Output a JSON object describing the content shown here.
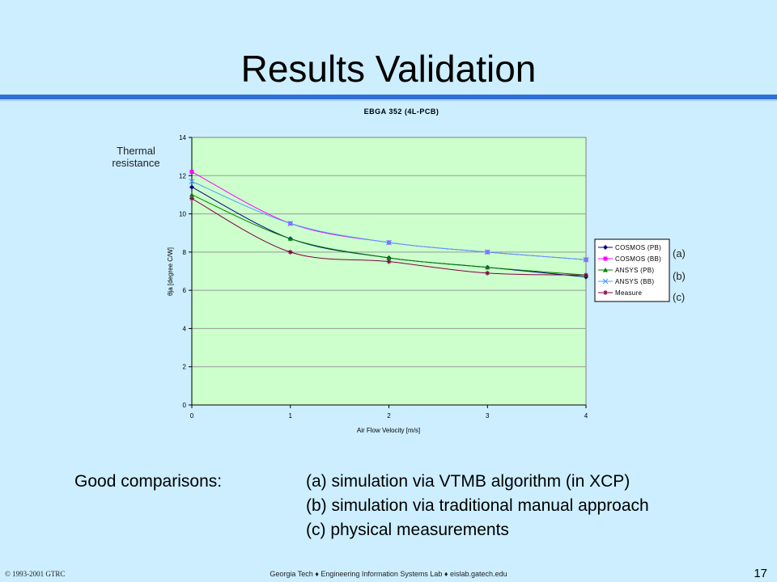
{
  "slide": {
    "title": "Results Validation",
    "side_label_line1": "Thermal",
    "side_label_line2": "resistance",
    "tags": [
      "(a)",
      "(b)",
      "(c)"
    ],
    "comparisons_heading": "Good comparisons:",
    "comparisons": [
      "(a) simulation via VTMB algorithm  (in XCP)",
      "(b) simulation via traditional manual approach",
      "(c) physical measurements"
    ],
    "footer_left": "© 1993-2001 GTRC",
    "footer_center": "Georgia Tech  ♦ Engineering  Information Systems Lab ♦ eislab.gatech.edu",
    "page_number": "17"
  },
  "colors": {
    "background": "#cceeff",
    "rule": "#2f6fd8",
    "plot_area": "#ccffcc"
  },
  "chart_data": {
    "type": "line",
    "title": "EBGA 352 (4L-PCB)",
    "xlabel": "Air Flow Velocity [m/s]",
    "ylabel": "θja  [degree C/W]",
    "x": [
      0,
      1,
      2,
      3,
      4
    ],
    "xlim": [
      0,
      4
    ],
    "ylim": [
      0,
      14
    ],
    "x_ticks": [
      "0",
      "1",
      "2",
      "3",
      "4"
    ],
    "y_ticks": [
      "0",
      "2",
      "4",
      "6",
      "8",
      "10",
      "12",
      "14"
    ],
    "grid": "horizontal",
    "legend_position": "right",
    "series": [
      {
        "name": "COSMOS (PB)",
        "values": [
          11.4,
          8.7,
          7.7,
          7.2,
          6.7
        ],
        "color": "#000080",
        "marker": "diamond"
      },
      {
        "name": "COSMOS (BB)",
        "values": [
          12.2,
          9.5,
          8.5,
          8.0,
          7.6
        ],
        "color": "#ff00ff",
        "marker": "square"
      },
      {
        "name": "ANSYS (PB)",
        "values": [
          11.0,
          8.7,
          7.7,
          7.2,
          6.8
        ],
        "color": "#008000",
        "marker": "triangle"
      },
      {
        "name": "ANSYS (BB)",
        "values": [
          11.7,
          9.5,
          8.5,
          8.0,
          7.6
        ],
        "color": "#4aa0ff",
        "marker": "x"
      },
      {
        "name": "Measure",
        "values": [
          10.8,
          8.0,
          7.5,
          6.9,
          6.8
        ],
        "color": "#800040",
        "marker": "star"
      }
    ]
  }
}
